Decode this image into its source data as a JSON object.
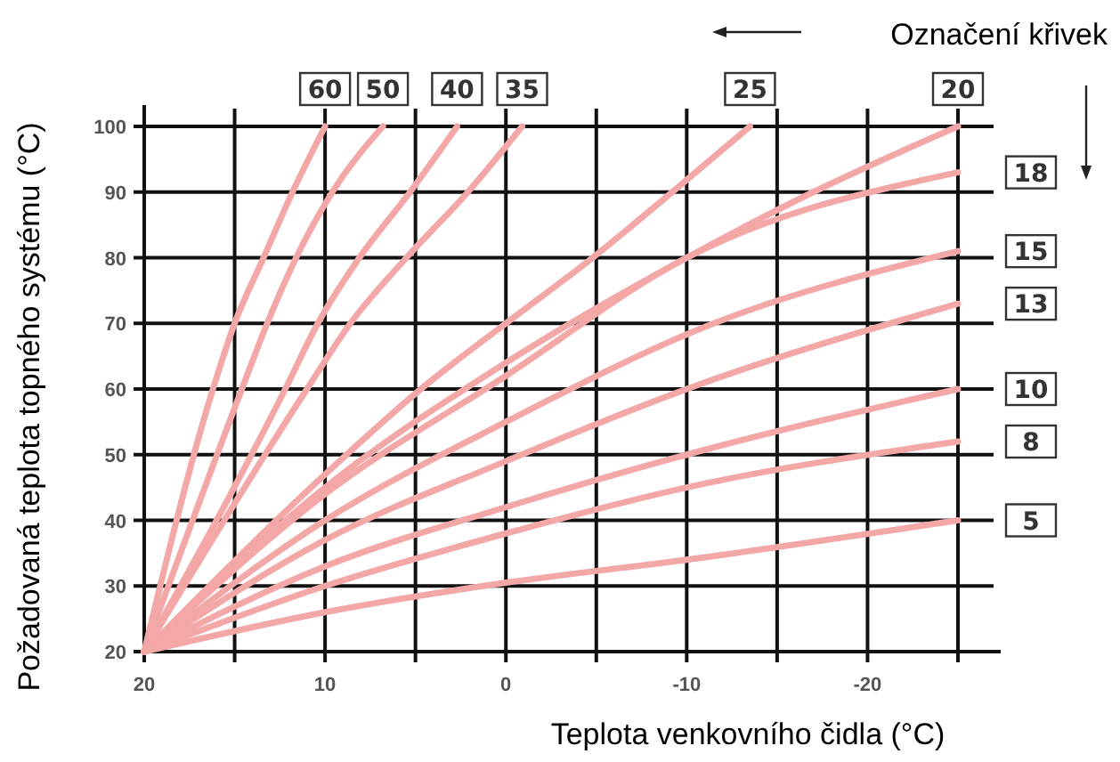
{
  "chart_data": {
    "type": "line",
    "xlabel": "Teplota venkovního čidla (°C)",
    "ylabel": "Požadovaná teplota topného systému (°C)",
    "annotations": [
      "Označení křivek"
    ],
    "xlim": [
      20,
      -25
    ],
    "ylim": [
      20,
      100
    ],
    "xticks": [
      20,
      {
        "value": 15,
        "label": null
      },
      10,
      {
        "value": 5,
        "label": null
      },
      0,
      {
        "value": -5,
        "label": null
      },
      -10,
      {
        "value": -15,
        "label": null
      },
      -20,
      {
        "value": -25,
        "label": null
      }
    ],
    "yticks": [
      20,
      30,
      40,
      50,
      60,
      70,
      80,
      90,
      100
    ],
    "grid": true,
    "line_style": "solid",
    "marker": "none",
    "series": [
      {
        "name": "60",
        "color": "#f4a7a7",
        "x": [
          20,
          16.2,
          15,
          13.4,
          11.8,
          10
        ],
        "values": [
          20,
          60,
          70,
          80,
          90,
          100
        ]
      },
      {
        "name": "50",
        "color": "#f4a7a7",
        "x": [
          20,
          14.6,
          13.2,
          11.6,
          9.6,
          6.8
        ],
        "values": [
          20,
          60,
          70,
          80,
          90,
          100
        ]
      },
      {
        "name": "40",
        "color": "#f4a7a7",
        "x": [
          20,
          12.2,
          10.4,
          8.1,
          5.3,
          2.7
        ],
        "values": [
          20,
          60,
          70,
          80,
          90,
          100
        ]
      },
      {
        "name": "35",
        "color": "#f4a7a7",
        "x": [
          20,
          11,
          8.6,
          5.5,
          2.1,
          -0.9
        ],
        "values": [
          20,
          60,
          70,
          80,
          90,
          100
        ]
      },
      {
        "name": "25",
        "color": "#f4a7a7",
        "x": [
          20,
          10,
          4.7,
          0,
          -4.8,
          -9.2,
          -13.5
        ],
        "values": [
          20,
          47,
          60,
          70,
          80,
          90,
          100
        ]
      },
      {
        "name": "20",
        "color": "#f4a7a7",
        "x": [
          20,
          10,
          0,
          -10,
          -17,
          -25
        ],
        "values": [
          20,
          45,
          64,
          80,
          90,
          100
        ]
      },
      {
        "name": "18",
        "color": "#f4a7a7",
        "x": [
          20,
          10,
          0,
          -10,
          -25
        ],
        "values": [
          20,
          44,
          62,
          80,
          93
        ]
      },
      {
        "name": "15",
        "color": "#f4a7a7",
        "x": [
          20,
          10,
          0,
          -11.5,
          -25
        ],
        "values": [
          20,
          40,
          55,
          70,
          81
        ]
      },
      {
        "name": "13",
        "color": "#f4a7a7",
        "x": [
          20,
          10,
          0,
          -10,
          -25
        ],
        "values": [
          20,
          37,
          49,
          60,
          73
        ]
      },
      {
        "name": "10",
        "color": "#f4a7a7",
        "x": [
          20,
          10,
          0,
          -10,
          -25
        ],
        "values": [
          20,
          33,
          42,
          50,
          60
        ]
      },
      {
        "name": "8",
        "color": "#f4a7a7",
        "x": [
          20,
          10,
          0,
          -10,
          -25
        ],
        "values": [
          20,
          30,
          38,
          45,
          52
        ]
      },
      {
        "name": "5",
        "color": "#f4a7a7",
        "x": [
          20,
          10,
          0,
          -10,
          -25
        ],
        "values": [
          20,
          26,
          30.5,
          34,
          40
        ]
      }
    ]
  }
}
